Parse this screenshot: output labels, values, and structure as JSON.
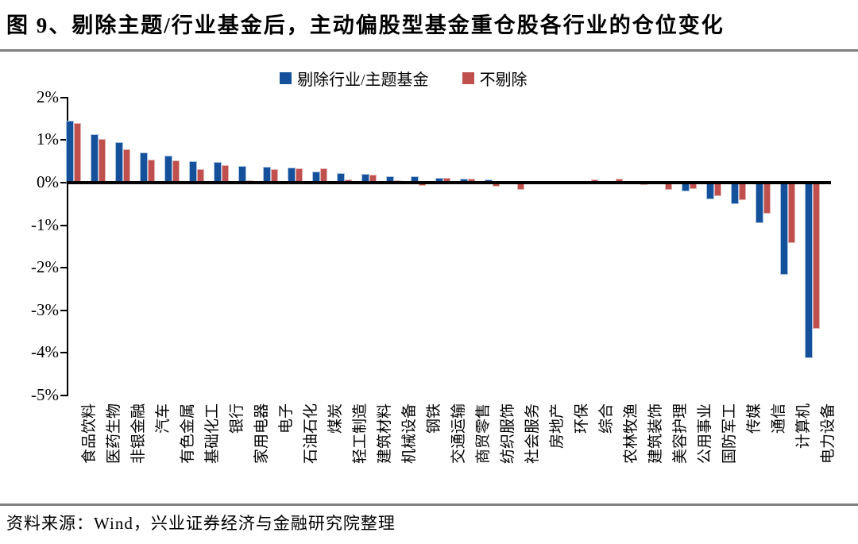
{
  "title": "图 9、剔除主题/行业基金后，主动偏股型基金重仓股各行业的仓位变化",
  "source_note": "资料来源：Wind，兴业证券经济与金融研究院整理",
  "colors": {
    "series_excluded": "#15509a",
    "series_excluded_edge": "#a9c4e2",
    "series_included": "#c0504d",
    "series_included_edge": "#e3b3b1",
    "axis": "#000000",
    "rule_gray": "#7f7f7f"
  },
  "chart_data": {
    "type": "bar",
    "title": "图 9、剔除主题/行业基金后，主动偏股型基金重仓股各行业的仓位变化",
    "unit": "%",
    "grid": false,
    "legend_position": "top",
    "ylim": [
      -5,
      2
    ],
    "yticks": [
      2,
      1,
      0,
      -1,
      -2,
      -3,
      -4,
      -5
    ],
    "ytick_labels": [
      "2%",
      "1%",
      "0%",
      "-1%",
      "-2%",
      "-3%",
      "-4%",
      "-5%"
    ],
    "categories": [
      "食品饮料",
      "医药生物",
      "非银金融",
      "汽车",
      "有色金属",
      "基础化工",
      "银行",
      "家用电器",
      "电子",
      "石油石化",
      "煤炭",
      "轻工制造",
      "建筑材料",
      "机械设备",
      "钢铁",
      "交通运输",
      "商贸零售",
      "纺织服饰",
      "社会服务",
      "房地产",
      "环保",
      "综合",
      "农林牧渔",
      "建筑装饰",
      "美容护理",
      "公用事业",
      "国防军工",
      "传媒",
      "通信",
      "计算机",
      "电力设备"
    ],
    "series": [
      {
        "name": "剔除行业/主题基金",
        "color": "#15509a",
        "values": [
          1.45,
          1.13,
          0.95,
          0.71,
          0.63,
          0.51,
          0.48,
          0.39,
          0.37,
          0.35,
          0.27,
          0.23,
          0.2,
          0.14,
          0.14,
          0.12,
          0.09,
          0.07,
          0.04,
          0.03,
          0.0,
          0.01,
          0.01,
          -0.04,
          -0.04,
          -0.2,
          -0.4,
          -0.5,
          -0.95,
          -2.16,
          -4.13
        ]
      },
      {
        "name": "不剔除",
        "color": "#c0504d",
        "values": [
          1.4,
          1.02,
          0.78,
          0.54,
          0.52,
          0.31,
          0.41,
          0.06,
          0.32,
          0.34,
          0.34,
          0.08,
          0.18,
          0.06,
          -0.08,
          0.12,
          0.1,
          -0.1,
          -0.16,
          0.02,
          0.01,
          0.07,
          0.1,
          -0.06,
          -0.16,
          -0.15,
          -0.31,
          -0.41,
          -0.72,
          -1.42,
          -3.43
        ]
      }
    ]
  }
}
